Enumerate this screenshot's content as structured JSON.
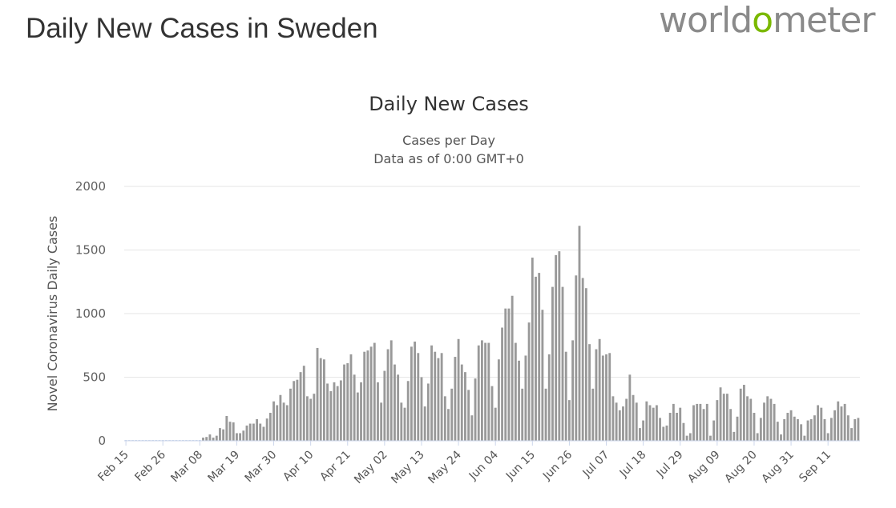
{
  "page": {
    "title": "Daily New Cases in Sweden"
  },
  "logo": {
    "part1": "world",
    "accent": "o",
    "part2": "meter",
    "accent_color": "#7ab800"
  },
  "chart_data": {
    "type": "bar",
    "title": "Daily New Cases",
    "subtitle_lines": [
      "Cases per Day",
      "Data as of 0:00 GMT+0"
    ],
    "ylabel": "Novel Coronavirus Daily Cases",
    "xlabel": "",
    "ylim": [
      0,
      2000
    ],
    "yticks": [
      0,
      500,
      1000,
      1500,
      2000
    ],
    "grid": true,
    "bar_color": "#999999",
    "start_date": "Feb 15",
    "xtick_labels": [
      "Feb 15",
      "Feb 26",
      "Mar 08",
      "Mar 19",
      "Mar 30",
      "Apr 10",
      "Apr 21",
      "May 02",
      "May 13",
      "May 24",
      "Jun 04",
      "Jun 15",
      "Jun 26",
      "Jul 07",
      "Jul 18",
      "Jul 29",
      "Aug 09",
      "Aug 20",
      "Aug 31",
      "Sep 11"
    ],
    "xtick_interval_days": 11,
    "values": [
      0,
      0,
      0,
      0,
      0,
      0,
      0,
      0,
      0,
      0,
      0,
      0,
      0,
      0,
      0,
      0,
      0,
      0,
      0,
      0,
      0,
      0,
      0,
      25,
      30,
      50,
      25,
      40,
      100,
      90,
      195,
      150,
      145,
      60,
      60,
      80,
      120,
      135,
      135,
      170,
      135,
      110,
      175,
      220,
      310,
      280,
      360,
      300,
      280,
      410,
      470,
      480,
      540,
      590,
      350,
      330,
      370,
      730,
      650,
      640,
      450,
      390,
      460,
      430,
      475,
      600,
      610,
      680,
      520,
      380,
      460,
      700,
      710,
      740,
      770,
      460,
      300,
      550,
      720,
      790,
      600,
      520,
      300,
      260,
      470,
      740,
      780,
      690,
      500,
      270,
      450,
      750,
      700,
      650,
      690,
      350,
      250,
      410,
      660,
      800,
      600,
      540,
      400,
      200,
      490,
      750,
      790,
      770,
      770,
      430,
      260,
      640,
      890,
      1040,
      1040,
      1140,
      770,
      630,
      410,
      670,
      930,
      1440,
      1290,
      1320,
      1030,
      410,
      680,
      1210,
      1460,
      1490,
      1210,
      700,
      320,
      790,
      1300,
      1690,
      1280,
      1200,
      760,
      410,
      720,
      800,
      670,
      680,
      690,
      350,
      300,
      240,
      270,
      330,
      520,
      360,
      300,
      100,
      160,
      310,
      280,
      260,
      280,
      180,
      110,
      120,
      220,
      290,
      220,
      260,
      140,
      40,
      60,
      280,
      290,
      290,
      250,
      290,
      40,
      160,
      320,
      420,
      370,
      370,
      250,
      70,
      190,
      410,
      440,
      350,
      330,
      220,
      60,
      180,
      300,
      350,
      330,
      290,
      150,
      50,
      170,
      220,
      240,
      190,
      170,
      130,
      40,
      160,
      170,
      200,
      280,
      260,
      170,
      60,
      180,
      240,
      310,
      270,
      290,
      200,
      100,
      170,
      180
    ]
  }
}
